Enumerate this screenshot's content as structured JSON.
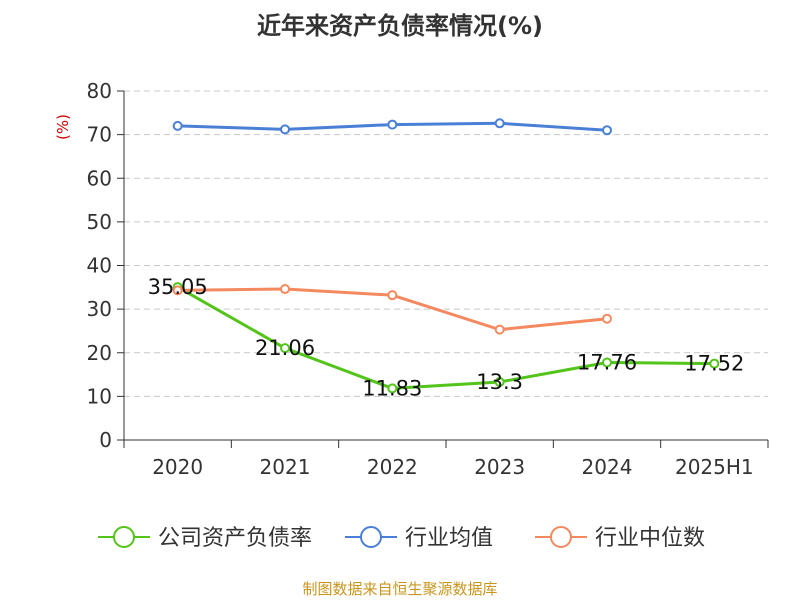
{
  "chart_data": {
    "type": "line",
    "title": "近年来资产负债率情况(%)",
    "ylabel": "(%)",
    "xlabel": "",
    "ylim": [
      0,
      80
    ],
    "yticks": [
      0,
      10,
      20,
      30,
      40,
      50,
      60,
      70,
      80
    ],
    "grid": true,
    "legend_position": "bottom",
    "categories": [
      "2020",
      "2021",
      "2022",
      "2023",
      "2024",
      "2025H1"
    ],
    "series": [
      {
        "name": "公司资产负债率",
        "color": "#52c41a",
        "values": [
          35.05,
          21.06,
          11.83,
          13.3,
          17.76,
          17.52
        ],
        "labels": [
          "35.05",
          "21.06",
          "11.83",
          "13.3",
          "17.76",
          "17.52"
        ]
      },
      {
        "name": "行业均值",
        "color": "#4a7fd6",
        "values": [
          72.0,
          71.2,
          72.3,
          72.6,
          71.0,
          null
        ]
      },
      {
        "name": "行业中位数",
        "color": "#f4895f",
        "values": [
          34.3,
          34.6,
          33.2,
          25.3,
          27.8,
          null
        ]
      }
    ]
  },
  "source_text": "制图数据来自恒生聚源数据库",
  "source_color": "#c8961e",
  "ylabel_color": "#cc0000"
}
